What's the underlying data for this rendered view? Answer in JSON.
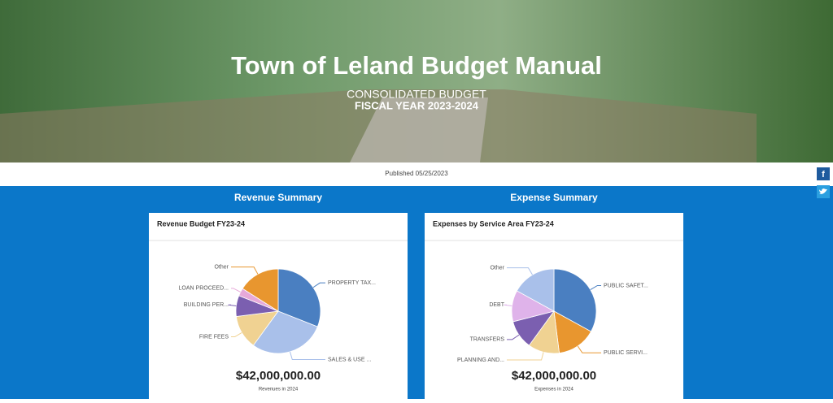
{
  "header": {
    "title": "Town of Leland Budget Manual",
    "subtitle": "CONSOLIDATED BUDGET",
    "fiscal_year": "FISCAL YEAR 2023-2024"
  },
  "published": "Published 05/25/2023",
  "chart_data": [
    {
      "type": "pie",
      "heading": "Revenue Summary",
      "title": "Revenue Budget FY23-24",
      "categories": [
        "PROPERTY TAX...",
        "SALES & USE ...",
        "FIRE FEES",
        "BUILDING PER...",
        "LOAN PROCEED...",
        "Other"
      ],
      "values": [
        31,
        29,
        13,
        8,
        3,
        16
      ],
      "colors": [
        "#4a7fc1",
        "#a9c0ea",
        "#f0d292",
        "#7b5fb0",
        "#e7a9d9",
        "#e8962f"
      ],
      "total": "$42,000,000.00",
      "caption": "Revenues in 2024"
    },
    {
      "type": "pie",
      "heading": "Expense Summary",
      "title": "Expenses by Service Area FY23-24",
      "categories": [
        "PUBLIC SAFET...",
        "PUBLIC SERVI...",
        "PLANNING AND...",
        "TRANSFERS",
        "DEBT",
        "Other"
      ],
      "values": [
        33,
        15,
        12,
        11,
        12,
        17
      ],
      "colors": [
        "#4a7fc1",
        "#e8962f",
        "#f0d292",
        "#7b5fb0",
        "#dfb3ea",
        "#a9c0ea"
      ],
      "total": "$42,000,000.00",
      "caption": "Expenses in 2024"
    }
  ]
}
